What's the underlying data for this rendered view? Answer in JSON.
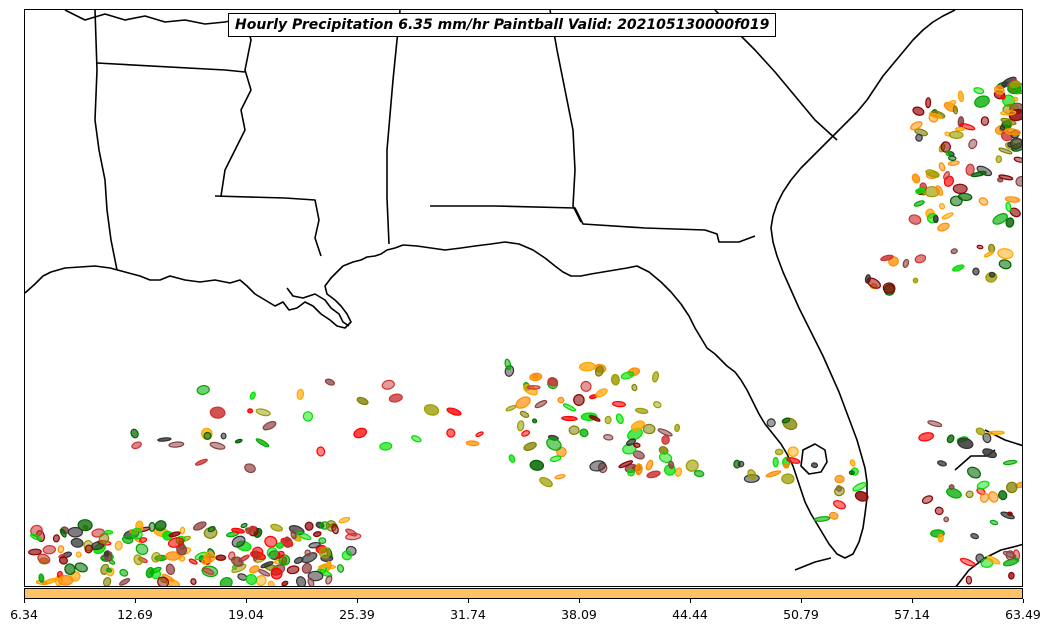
{
  "title": "Hourly Precipitation 6.35 mm/hr Paintball Valid: 202105130000f019",
  "colors": {
    "coastline": "#000000",
    "colorbar_fill": "#ffc266",
    "paint": [
      "#8b0000",
      "#ff0000",
      "#00aa00",
      "#00dd00",
      "#ff8c00",
      "#ffa500",
      "#9c9c00",
      "#808000",
      "#8b4040",
      "#333333",
      "#006400",
      "#cc3333"
    ]
  },
  "colorbar": {
    "ticks": [
      "6.34",
      "12.69",
      "19.04",
      "25.39",
      "31.74",
      "38.09",
      "44.44",
      "50.79",
      "57.14",
      "63.49"
    ]
  }
}
